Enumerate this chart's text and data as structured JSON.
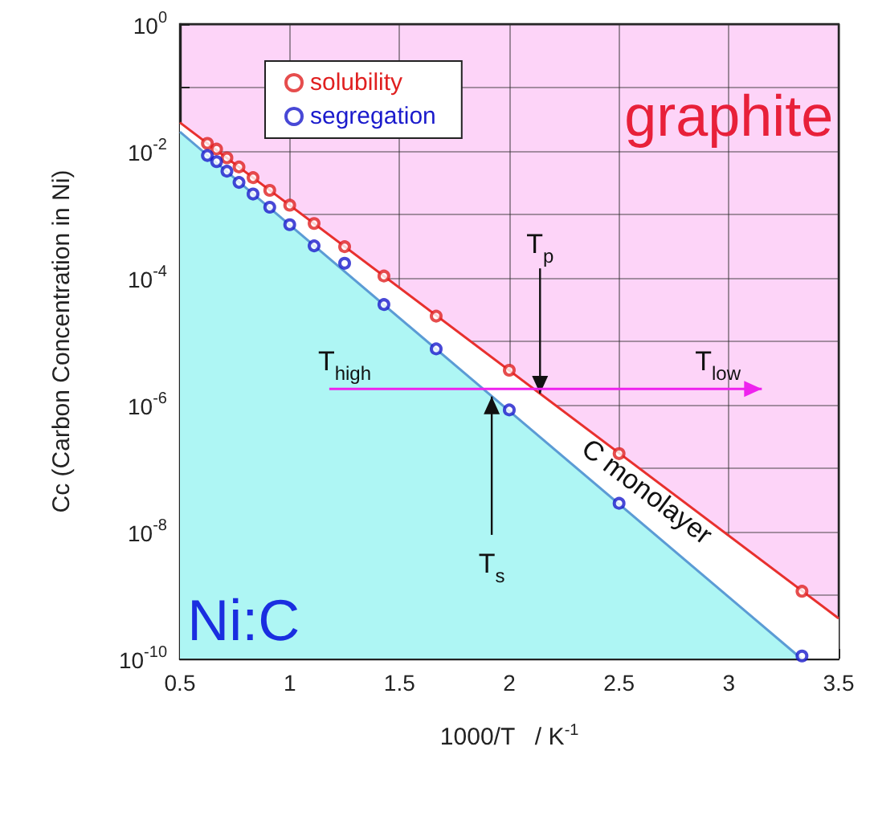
{
  "chart_data": {
    "type": "scatter",
    "xlabel": "1000/T   / K$^{-1}$",
    "ylabel": "Cc (Carbon Concentration in Ni)",
    "xlim": [
      0.5,
      3.5
    ],
    "xticks": [
      0.5,
      1,
      1.5,
      2,
      2.5,
      3,
      3.5
    ],
    "ylim": [
      1e-10,
      1
    ],
    "log": "y",
    "yticks": [
      {
        "value": 1e-10,
        "label": "10$^{-10}$"
      },
      {
        "value": 1e-09,
        "label": null
      },
      {
        "value": 1e-08,
        "label": "10$^{-8}$"
      },
      {
        "value": 1e-07,
        "label": null
      },
      {
        "value": 1e-06,
        "label": "10$^{-6}$"
      },
      {
        "value": 1e-05,
        "label": null
      },
      {
        "value": 0.0001,
        "label": "10$^{-4}$"
      },
      {
        "value": 0.001,
        "label": null
      },
      {
        "value": 0.01,
        "label": "10$^{-2}$"
      },
      {
        "value": 0.1,
        "label": null
      },
      {
        "value": 1,
        "label": "10$^{0}$"
      }
    ],
    "grid": true,
    "legend": "top left",
    "marker": "circle",
    "series": [
      {
        "type": "line",
        "marker": "none",
        "color": "#e8302e",
        "x": [
          0.5,
          3.5
        ],
        "values": [
          0.028,
          4.3e-10
        ]
      },
      {
        "type": "line",
        "marker": "none",
        "color": "#5b9bd5",
        "x": [
          0.5,
          3.33
        ],
        "values": [
          0.02,
          1e-10
        ]
      },
      {
        "name": "solubility",
        "color": "#e02020",
        "x": [
          0.625,
          0.667,
          0.714,
          0.769,
          0.833,
          0.909,
          1,
          1.111,
          1.25,
          1.429,
          1.667,
          2,
          2.5,
          3.333
        ],
        "values": [
          0.0132,
          0.0107,
          0.0078,
          0.0056,
          0.0038,
          0.0024,
          0.0014,
          0.00072,
          0.00031,
          0.000107,
          2.5e-05,
          3.5e-06,
          1.7e-07,
          1.15e-09
        ]
      },
      {
        "name": "segregation",
        "color": "#1a1acc",
        "x": [
          0.625,
          0.667,
          0.714,
          0.769,
          0.833,
          0.909,
          1,
          1.111,
          1.25,
          1.429,
          1.667,
          2,
          2.5,
          3.333
        ],
        "values": [
          0.0085,
          0.0068,
          0.0048,
          0.0032,
          0.0021,
          0.0013,
          0.00069,
          0.00032,
          0.00017,
          3.8e-05,
          7.6e-06,
          8.3e-07,
          2.8e-08,
          1.1e-10
        ]
      }
    ],
    "annotations": [
      "graphite",
      "Ni:C",
      "C monolayer",
      "T$_{high}$",
      "T$_{low}$",
      {
        "text": "T$_{p}$",
        "x": 2.14,
        "y": 1.5e-06
      },
      {
        "text": "T$_{s}$",
        "x": 1.92,
        "y": 1.35e-06
      }
    ]
  }
}
